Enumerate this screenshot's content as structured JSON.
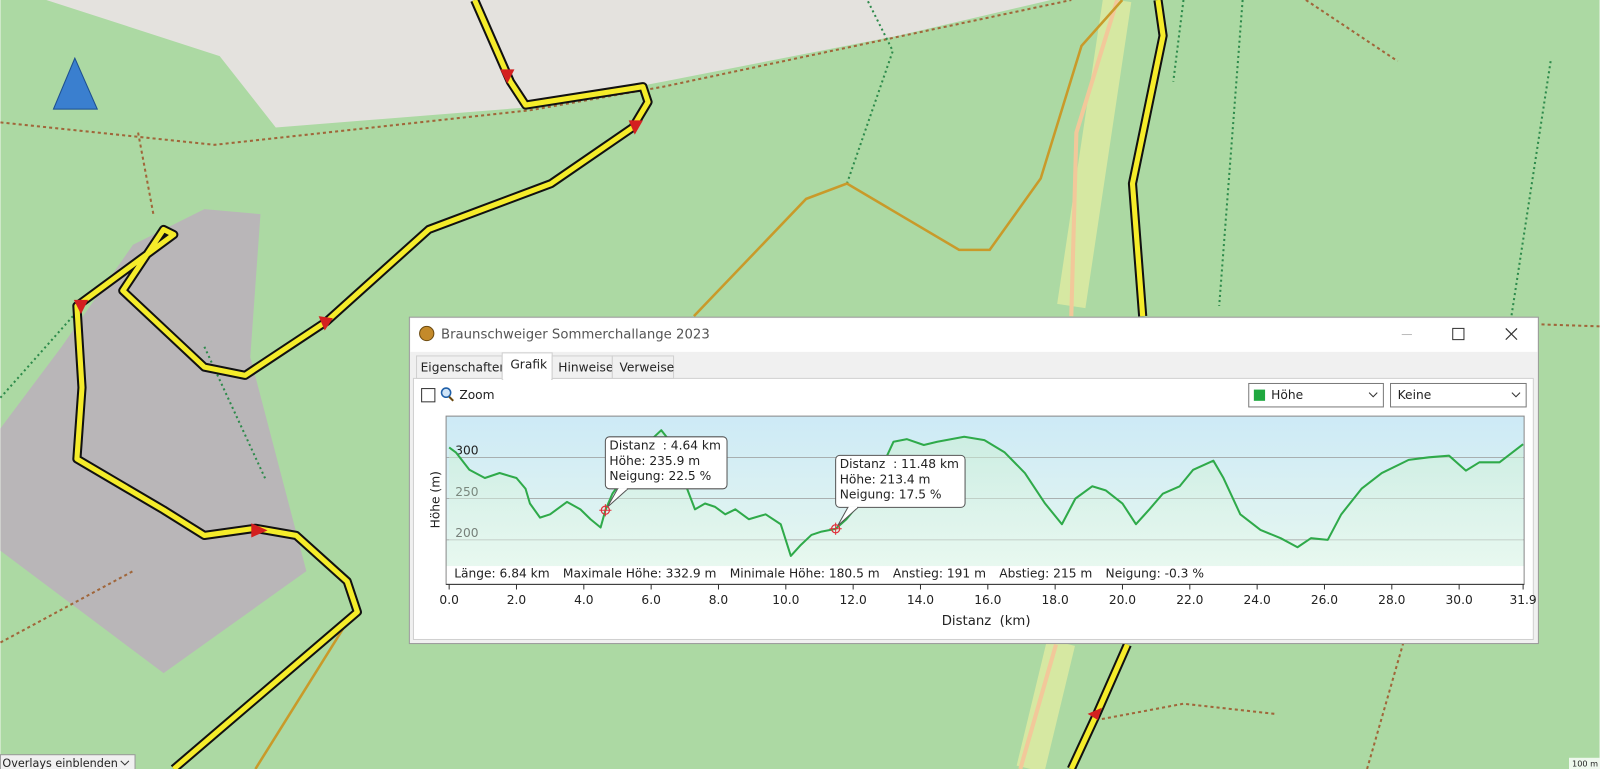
{
  "window": {
    "title": "Braunschweiger Sommerchallange 2023",
    "tabs": [
      "Eigenschaften",
      "Grafik",
      "Hinweise",
      "Verweise"
    ],
    "zoom_label": "Zoom",
    "dropdowns": [
      "Höhe",
      "Keine"
    ]
  },
  "map": {
    "overlay_dropdown": "Overlays einblenden",
    "scale": "100 m"
  },
  "chart_data": {
    "type": "line",
    "xlabel": "Distanz  (km)",
    "ylabel": "Höhe (m)",
    "color": "#2faa4a",
    "grid": true,
    "x": [
      0,
      0.2,
      0.6,
      1.06,
      1.5,
      2.0,
      2.27,
      2.4,
      2.7,
      3.0,
      3.5,
      3.9,
      4.2,
      4.5,
      4.64,
      4.85,
      5.3,
      5.76,
      6.3,
      6.7,
      7.0,
      7.3,
      7.6,
      7.9,
      8.2,
      8.5,
      8.9,
      9.4,
      9.85,
      10.15,
      10.45,
      10.76,
      11.06,
      11.48,
      11.8,
      12.3,
      12.7,
      13.2,
      13.6,
      14.1,
      14.5,
      15.3,
      15.9,
      16.5,
      17.1,
      17.7,
      18.2,
      18.6,
      19.1,
      19.5,
      20.0,
      20.4,
      20.8,
      21.2,
      21.7,
      22.1,
      22.7,
      23.0,
      23.5,
      24.1,
      24.7,
      25.2,
      25.6,
      26.1,
      26.5,
      27.1,
      27.7,
      28.5,
      29.1,
      29.7,
      30.2,
      30.6,
      31.2,
      31.9
    ],
    "values": [
      312,
      306,
      285,
      275,
      281,
      275,
      262,
      244,
      227,
      231,
      246,
      237,
      225,
      215,
      235.9,
      256,
      281,
      312,
      332.9,
      312,
      269,
      237,
      244,
      240,
      231,
      237,
      225,
      231,
      219,
      180.5,
      194,
      206,
      210,
      213.4,
      225,
      250,
      275,
      319,
      322,
      315,
      319,
      325,
      321,
      306,
      281,
      244,
      219,
      250,
      265,
      260,
      244,
      219,
      237,
      256,
      265,
      285,
      296,
      275,
      231,
      212,
      202,
      191,
      202,
      200,
      231,
      262,
      281,
      297,
      300,
      302,
      284,
      294,
      294,
      316
    ],
    "xlim": [
      0,
      31.9
    ],
    "xticks": [
      {
        "value": 0,
        "label": "0.0"
      },
      {
        "value": 2,
        "label": "2.0"
      },
      {
        "value": 4,
        "label": "4.0"
      },
      {
        "value": 6,
        "label": "6.0"
      },
      {
        "value": 8,
        "label": "8.0"
      },
      {
        "value": 10,
        "label": "10.0"
      },
      {
        "value": 12,
        "label": "12.0"
      },
      {
        "value": 14,
        "label": "14.0"
      },
      {
        "value": 16,
        "label": "16.0"
      },
      {
        "value": 18,
        "label": "18.0"
      },
      {
        "value": 20,
        "label": "20.0"
      },
      {
        "value": 22,
        "label": "22.0"
      },
      {
        "value": 24,
        "label": "24.0"
      },
      {
        "value": 26,
        "label": "26.0"
      },
      {
        "value": 28,
        "label": "28.0"
      },
      {
        "value": 30,
        "label": "30.0"
      },
      31.9
    ],
    "ylim": [
      146,
      350
    ],
    "yticks": [
      200,
      250,
      300
    ],
    "annotations": [
      {
        "x": 4.64,
        "y": 235.9,
        "lines": [
          "Distanz  : 4.64 km",
          "Höhe: 235.9 m",
          "Neigung: 22.5 %"
        ]
      },
      {
        "x": 11.48,
        "y": 213.4,
        "lines": [
          "Distanz  : 11.48 km",
          "Höhe: 213.4 m",
          "Neigung: 17.5 %"
        ]
      }
    ],
    "stats": [
      "Länge: 6.84 km",
      "Maximale Höhe: 332.9 m",
      "Minimale Höhe: 180.5 m",
      "Anstieg: 191 m",
      "Abstieg: 215 m",
      "Neigung: -0.3 %"
    ]
  }
}
